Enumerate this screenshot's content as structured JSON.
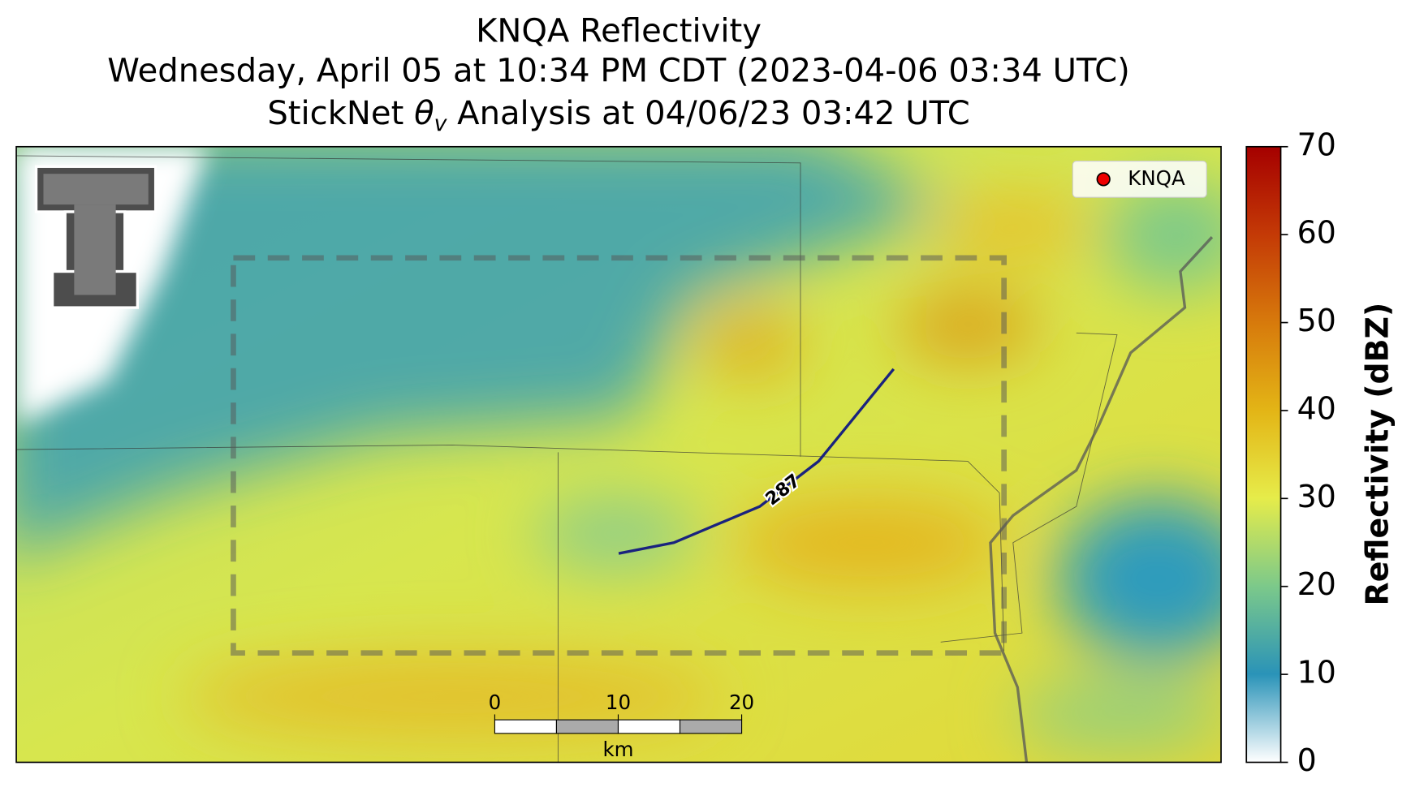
{
  "header": {
    "title_line1": "KNQA Reflectivity",
    "title_line2": "Wednesday, April 05 at 10:34 PM CDT (2023-04-06 03:34 UTC)",
    "title_line3": {
      "before": "StickNet ",
      "symbol": "θ",
      "subscript": "v",
      "after": " Analysis at 04/06/23 03:42 UTC"
    }
  },
  "legend": {
    "entries": [
      "KNQA"
    ]
  },
  "contour": {
    "label": "287"
  },
  "scale_bar": {
    "ticks": [
      0,
      10,
      20
    ],
    "unit": "km"
  },
  "colorbar": {
    "label": "Reflectivity (dBZ)",
    "lim": [
      0,
      70
    ],
    "ticks": [
      0,
      10,
      20,
      30,
      40,
      50,
      60,
      70
    ]
  }
}
